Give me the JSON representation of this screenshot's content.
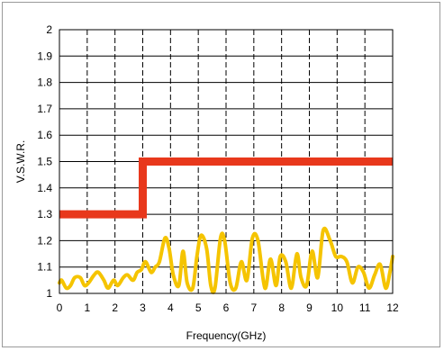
{
  "chart_data": {
    "type": "line",
    "title": "",
    "xlabel": "Frequency(GHz)",
    "ylabel": "V.S.W.R.",
    "xlim": [
      0,
      12
    ],
    "ylim": [
      1,
      2
    ],
    "x_ticks": [
      "0",
      "1",
      "2",
      "3",
      "4",
      "5",
      "6",
      "7",
      "8",
      "9",
      "10",
      "11",
      "12"
    ],
    "y_ticks": [
      "1",
      "1.1",
      "1.2",
      "1.3",
      "1.4",
      "1.5",
      "1.6",
      "1.7",
      "1.8",
      "1.9",
      "2"
    ],
    "grid": {
      "horizontal": "solid",
      "vertical": "dashed"
    },
    "legend": "none",
    "series": [
      {
        "color": "#e8381c",
        "style": "step",
        "x": [
          0,
          3,
          3,
          12
        ],
        "y": [
          1.3,
          1.3,
          1.5,
          1.5
        ]
      },
      {
        "color": "#f5c400",
        "style": "curve",
        "x": [
          0,
          0.08,
          0.25,
          0.4,
          0.55,
          0.75,
          0.9,
          1.05,
          1.25,
          1.4,
          1.6,
          1.75,
          1.95,
          2.1,
          2.3,
          2.45,
          2.65,
          2.8,
          2.95,
          3.1,
          3.3,
          3.45,
          3.6,
          3.8,
          3.95,
          4.1,
          4.3,
          4.45,
          4.6,
          4.8,
          4.95,
          5.1,
          5.3,
          5.45,
          5.6,
          5.8,
          5.95,
          6.15,
          6.35,
          6.55,
          6.75,
          6.95,
          7.15,
          7.4,
          7.6,
          7.8,
          7.95,
          8.15,
          8.35,
          8.55,
          8.7,
          8.9,
          9.1,
          9.3,
          9.5,
          9.75,
          9.95,
          10.15,
          10.35,
          10.55,
          10.75,
          10.95,
          11.15,
          11.35,
          11.55,
          11.75,
          11.9,
          12
        ],
        "y": [
          1.04,
          1.05,
          1.02,
          1.03,
          1.06,
          1.06,
          1.03,
          1.04,
          1.07,
          1.08,
          1.05,
          1.02,
          1.05,
          1.03,
          1.06,
          1.07,
          1.05,
          1.08,
          1.09,
          1.12,
          1.08,
          1.1,
          1.12,
          1.21,
          1.17,
          1.07,
          1.03,
          1.16,
          1.04,
          1.02,
          1.14,
          1.22,
          1.17,
          1.03,
          1.02,
          1.21,
          1.2,
          1.04,
          1.02,
          1.12,
          1.05,
          1.21,
          1.2,
          1.02,
          1.13,
          1.03,
          1.14,
          1.12,
          1.02,
          1.15,
          1.06,
          1.03,
          1.16,
          1.06,
          1.24,
          1.2,
          1.14,
          1.14,
          1.12,
          1.04,
          1.1,
          1.08,
          1.02,
          1.07,
          1.11,
          1.02,
          1.08,
          1.14
        ]
      }
    ]
  }
}
